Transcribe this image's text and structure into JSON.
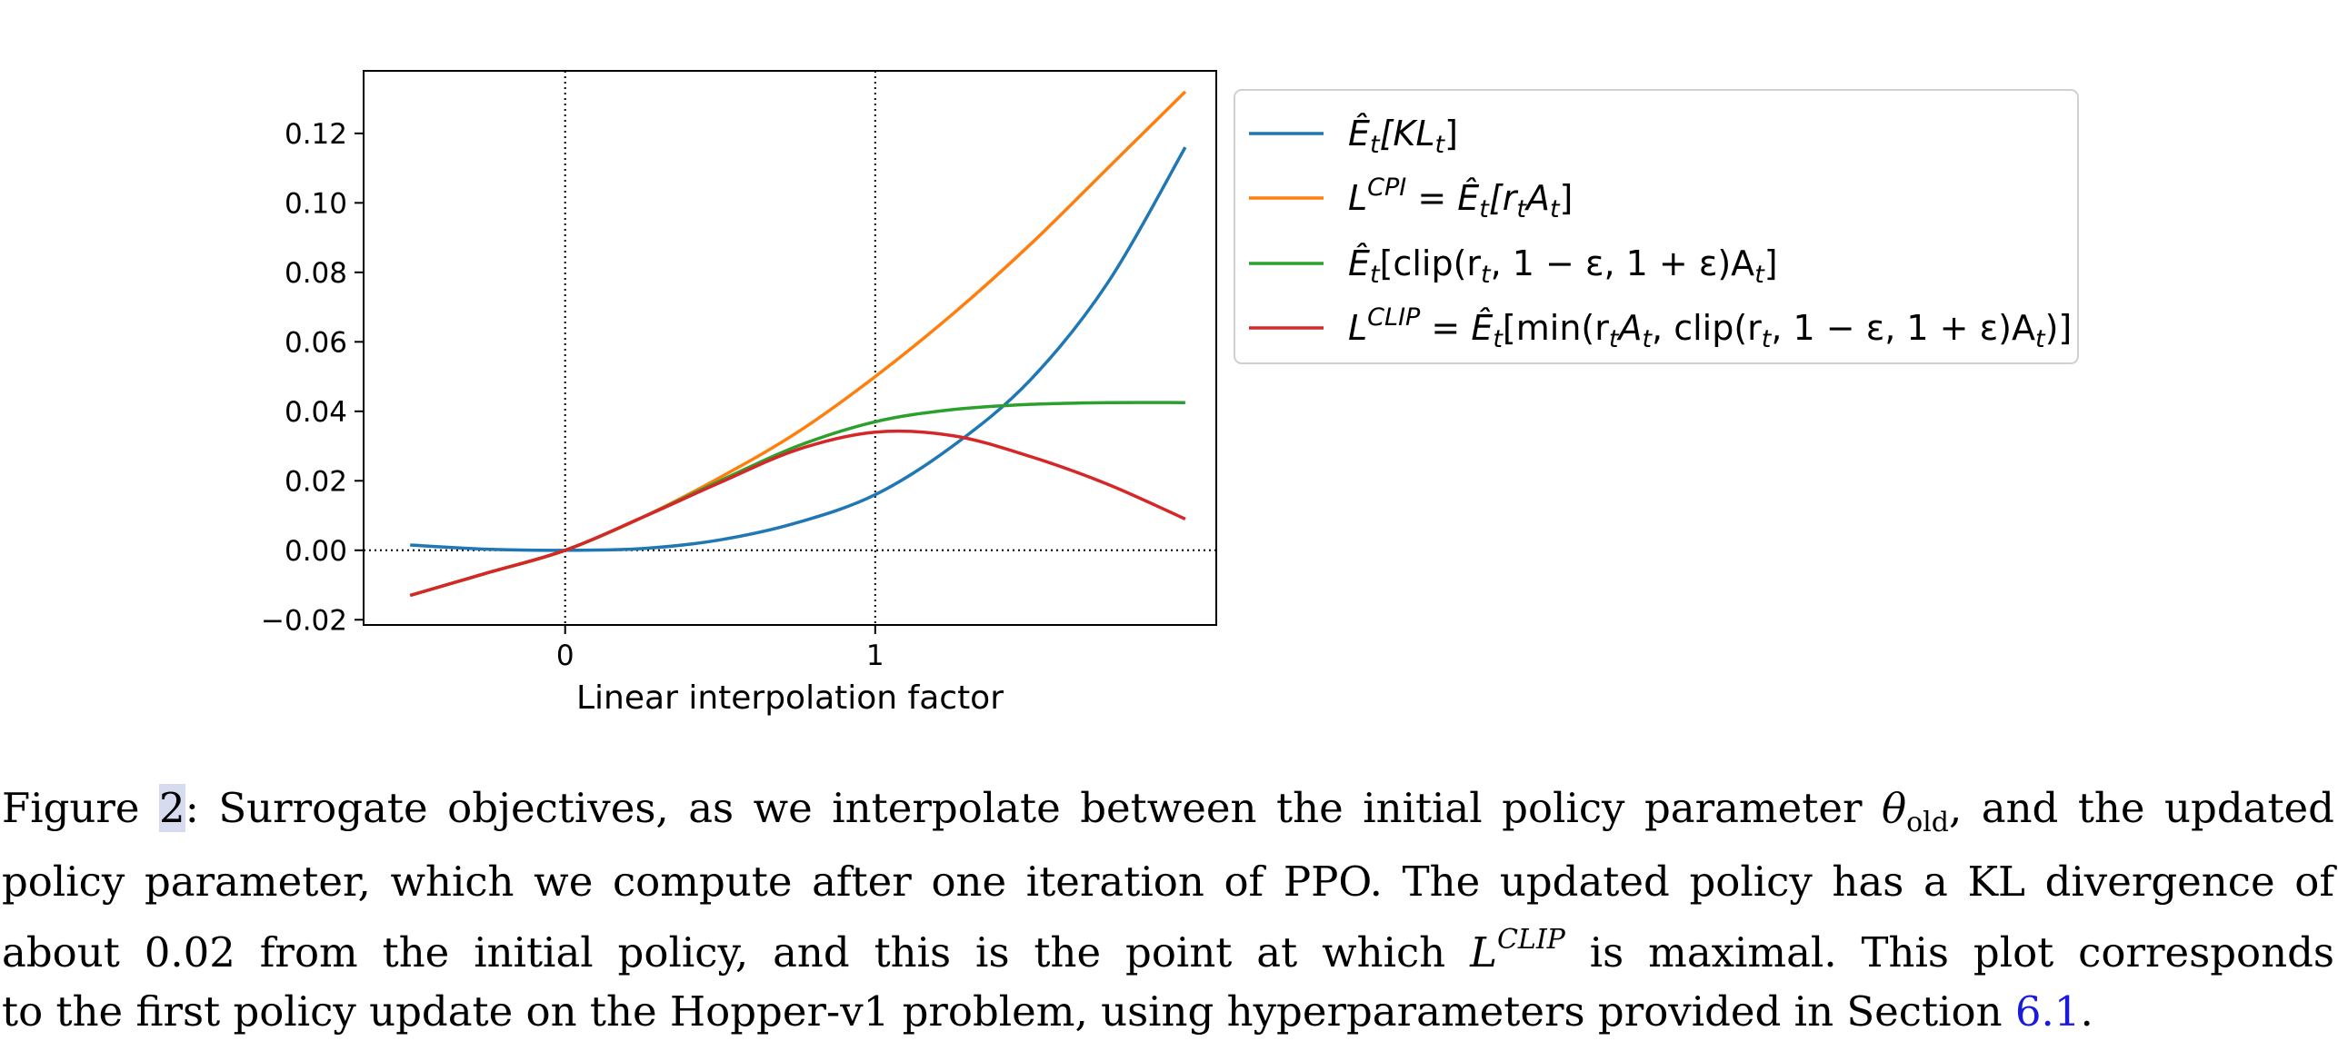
{
  "chart_data": {
    "type": "line",
    "xlabel": "Linear interpolation factor",
    "ylabel": "",
    "xlim": [
      -0.65,
      2.1
    ],
    "ylim": [
      -0.0215,
      0.138
    ],
    "x_ticks": [
      0,
      1
    ],
    "x_tick_labels": [
      "0",
      "1"
    ],
    "y_ticks": [
      -0.02,
      0.0,
      0.02,
      0.04,
      0.06,
      0.08,
      0.1,
      0.12
    ],
    "y_tick_labels": [
      "−0.02",
      "0.00",
      "0.02",
      "0.04",
      "0.06",
      "0.08",
      "0.10",
      "0.12"
    ],
    "reference_lines": {
      "vertical_x": [
        0,
        1
      ],
      "horizontal_y": [
        0.0
      ],
      "style": "dotted"
    },
    "grid": false,
    "legend_position": "outside-right-top",
    "series": [
      {
        "name": "Êₜ[KLₜ]",
        "color": "#1f77b4",
        "x": [
          -0.5,
          -0.25,
          0.0,
          0.25,
          0.5,
          0.75,
          1.0,
          1.25,
          1.5,
          1.75,
          2.0
        ],
        "y": [
          0.0015,
          0.0003,
          0.0,
          0.0005,
          0.003,
          0.008,
          0.016,
          0.03,
          0.049,
          0.077,
          0.116
        ]
      },
      {
        "name": "L^CPI = Êₜ[rₜAₜ]",
        "color": "#ff7f0e",
        "x": [
          -0.5,
          -0.25,
          0.0,
          0.25,
          0.5,
          0.75,
          1.0,
          1.25,
          1.5,
          1.75,
          2.0
        ],
        "y": [
          -0.013,
          -0.0065,
          0.0,
          0.0095,
          0.021,
          0.034,
          0.05,
          0.068,
          0.088,
          0.11,
          0.132
        ]
      },
      {
        "name": "Êₜ[clip(rₜ, 1 − ε, 1 + ε)Aₜ]",
        "color": "#2ca02c",
        "x": [
          -0.5,
          -0.25,
          0.0,
          0.25,
          0.5,
          0.75,
          1.0,
          1.25,
          1.5,
          1.75,
          2.0
        ],
        "y": [
          -0.013,
          -0.0065,
          0.0,
          0.0095,
          0.02,
          0.03,
          0.037,
          0.0405,
          0.042,
          0.0425,
          0.0425
        ]
      },
      {
        "name": "L^CLIP = Êₜ[min(rₜAₜ, clip(rₜ, 1 − ε, 1 + ε)Aₜ)]",
        "color": "#d62728",
        "x": [
          -0.5,
          -0.25,
          0.0,
          0.25,
          0.5,
          0.75,
          1.0,
          1.25,
          1.5,
          1.75,
          2.0
        ],
        "y": [
          -0.013,
          -0.0065,
          0.0,
          0.0095,
          0.0195,
          0.029,
          0.034,
          0.033,
          0.027,
          0.019,
          0.009
        ]
      }
    ]
  },
  "legend": {
    "colors": [
      "#1f77b4",
      "#ff7f0e",
      "#2ca02c",
      "#d62728"
    ],
    "entries": [
      {
        "e_hat": "Ê",
        "t1": "t",
        "b1": "[KL",
        "t2": "t",
        "b2": "]"
      },
      {
        "l": "L",
        "sup": "CPI",
        "eq": " = ",
        "e_hat": "Ê",
        "t1": "t",
        "b1": "[r",
        "t2": "t",
        "b2": "A",
        "t3": "t",
        "b3": "]"
      },
      {
        "e_hat": "Ê",
        "t1": "t",
        "b1": "[clip(r",
        "t2": "t",
        "b2": ", 1 − ε, 1 + ε)A",
        "t3": "t",
        "b3": "]"
      },
      {
        "l": "L",
        "sup": "CLIP",
        "eq": " = ",
        "e_hat": "Ê",
        "t1": "t",
        "b1": "[min(r",
        "t2": "t",
        "b2": "A",
        "t3": "t",
        "b3": ", clip(r",
        "t4": "t",
        "b4": ", 1 − ε, 1 + ε)A",
        "t5": "t",
        "b5": ")]"
      }
    ]
  },
  "caption": {
    "figure_word": "Figure ",
    "figure_number": "2",
    "line1_a": ": Surrogate objectives, as we interpolate between the initial policy parameter ",
    "theta": "θ",
    "theta_sub": "old",
    "line1_b": ", and the updated",
    "line2": "policy parameter, which we compute after one iteration of PPO. The updated policy has a KL divergence of",
    "line3_a": "about 0.02 from the initial policy, and this is the point at which ",
    "l_symbol": "L",
    "l_sup": "CLIP",
    "line3_b": " is maximal. This plot corresponds",
    "line4_a": "to the first policy update on the Hopper-v1 problem, using hyperparameters provided in Section ",
    "section_link": "6.1",
    "line4_b": "."
  }
}
